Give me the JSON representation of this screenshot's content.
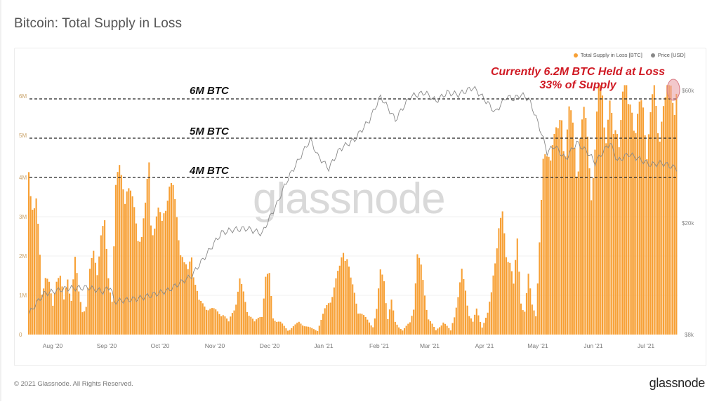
{
  "header": {
    "title": "Bitcoin: Total Supply in Loss"
  },
  "legend": {
    "items": [
      {
        "label": "Total Supply in Loss [BTC]",
        "color": "#f7a035"
      },
      {
        "label": "Price [USD]",
        "color": "#888888"
      }
    ]
  },
  "annotations": {
    "level_6m": "6M BTC",
    "level_5m": "5M BTC",
    "level_4m": "4M BTC",
    "callout_line1": "Currently 6.2M BTC Held at Loss",
    "callout_line2": "33% of Supply"
  },
  "watermark": "glassnode",
  "footer": {
    "copyright": "© 2021 Glassnode. All Rights Reserved.",
    "brand": "glassnode"
  },
  "axes": {
    "left_ticks": [
      "0",
      "1M",
      "2M",
      "3M",
      "4M",
      "5M",
      "6M"
    ],
    "right_ticks": [
      "$8k",
      "$20k",
      "$60k"
    ],
    "x_ticks": [
      "Aug '20",
      "Sep '20",
      "Oct '20",
      "Nov '20",
      "Dec '20",
      "Jan '21",
      "Feb '21",
      "Mar '21",
      "Apr '21",
      "May '21",
      "Jun '21",
      "Jul '21"
    ]
  },
  "colors": {
    "bar": "#f7a035",
    "price_line": "#888888",
    "annotation_red": "#d01a24",
    "highlight_circle": "#e89aa0"
  },
  "chart_data": {
    "type": "bar",
    "title": "Bitcoin: Total Supply in Loss",
    "xlabel": "",
    "ylabel": "Total Supply in Loss [BTC]",
    "y2label": "Price [USD]",
    "ylim": [
      0,
      6400000
    ],
    "y2lim": [
      8000,
      65000
    ],
    "y2scale": "log",
    "legend_position": "top-right",
    "grid": true,
    "categories": [
      "Aug '20",
      "Sep '20",
      "Oct '20",
      "Nov '20",
      "Dec '20",
      "Jan '21",
      "Feb '21",
      "Mar '21",
      "Apr '21",
      "May '21",
      "Jun '21",
      "Jul '21"
    ],
    "series": [
      {
        "name": "Total Supply in Loss [BTC]",
        "type": "bar",
        "monthly_approx_values": [
          1300000,
          3600000,
          2800000,
          500000,
          700000,
          400000,
          1600000,
          900000,
          600000,
          2500000,
          4800000,
          5500000
        ],
        "notable_points": [
          {
            "date": "late Jul '20",
            "value": 4700000
          },
          {
            "date": "early Sep '20",
            "value": 3900000
          },
          {
            "date": "late Sep '20",
            "value": 4200000
          },
          {
            "date": "mid Jul '21",
            "value": 6200000
          }
        ]
      },
      {
        "name": "Price [USD]",
        "type": "line",
        "monthly_approx_values": [
          11000,
          11500,
          10800,
          13500,
          19000,
          29000,
          38000,
          50000,
          58000,
          57000,
          36000,
          33000
        ],
        "notable_points": [
          {
            "date": "mid Apr '21",
            "value": 63000
          },
          {
            "date": "mid Jul '21",
            "value": 32000
          }
        ]
      }
    ],
    "reference_lines": [
      {
        "value": 4000000,
        "label": "4M BTC",
        "style": "dashed"
      },
      {
        "value": 5000000,
        "label": "5M BTC",
        "style": "dashed"
      },
      {
        "value": 6000000,
        "label": "6M BTC",
        "style": "dashed"
      }
    ],
    "callout": "Currently 6.2M BTC Held at Loss — 33% of Supply"
  }
}
